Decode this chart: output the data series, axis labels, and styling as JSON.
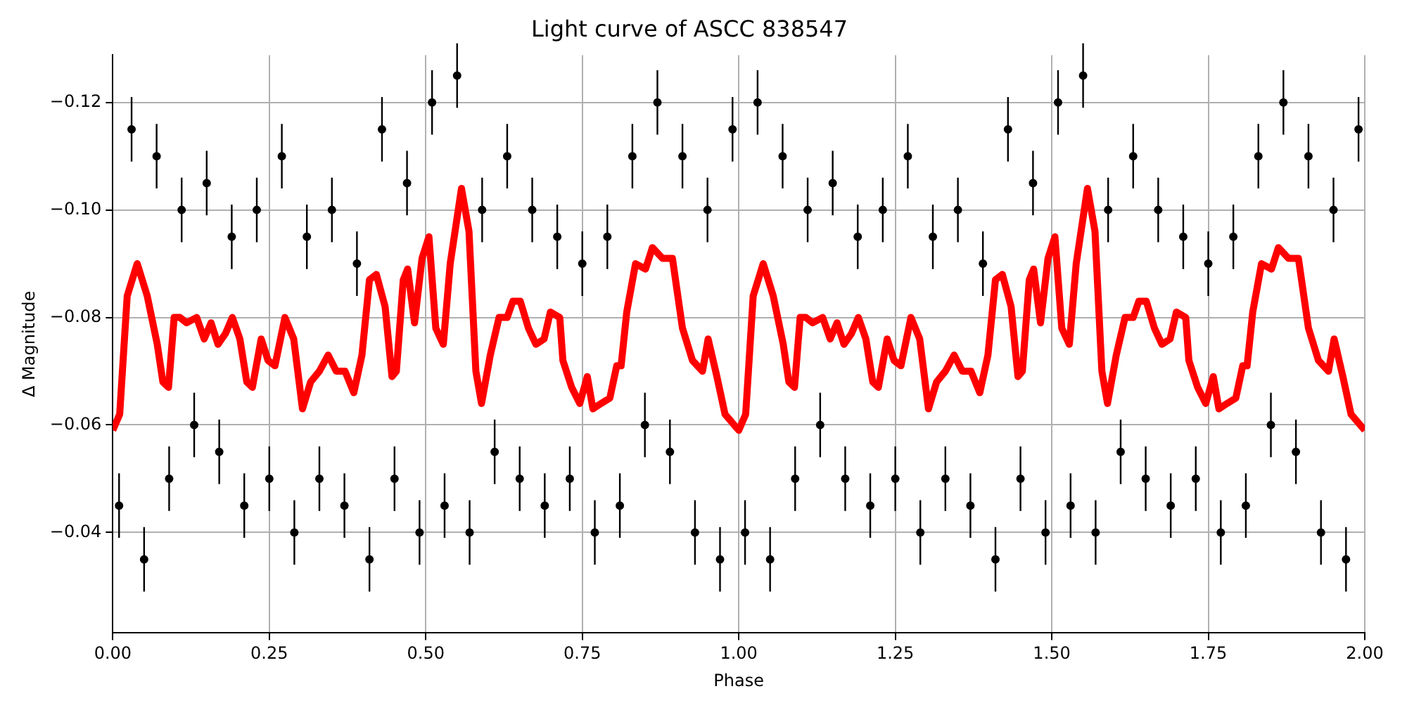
{
  "chart_data": {
    "type": "scatter",
    "title": "Light curve of ASCC 838547",
    "xlabel": "Phase",
    "ylabel": "Δ Magnitude",
    "xlim": [
      0,
      2
    ],
    "xticks": [
      {
        "value": 0,
        "label": "0.00"
      },
      {
        "value": 0.25,
        "label": "0.25"
      },
      {
        "value": 0.5,
        "label": "0.50"
      },
      {
        "value": 0.75,
        "label": "0.75"
      },
      {
        "value": 1,
        "label": "1.00"
      },
      {
        "value": 1.25,
        "label": "1.25"
      },
      {
        "value": 1.5,
        "label": "1.50"
      },
      {
        "value": 1.75,
        "label": "1.75"
      },
      {
        "value": 2,
        "label": "2.00"
      }
    ],
    "ylim": [
      -0.0213,
      -0.1288
    ],
    "yticks": [
      {
        "value": -0.12,
        "label": "−0.12"
      },
      {
        "value": -0.1,
        "label": "−0.10"
      },
      {
        "value": -0.08,
        "label": "−0.08"
      },
      {
        "value": -0.06,
        "label": "−0.06"
      },
      {
        "value": -0.04,
        "label": "−0.04"
      }
    ],
    "grid": true,
    "legend": false,
    "series": [
      {
        "type": "scatter",
        "color": "#000000",
        "marker": "circle",
        "x": [
          0.01,
          0.03,
          0.05,
          0.07,
          0.09,
          0.11,
          0.13,
          0.15,
          0.17,
          0.19,
          0.21,
          0.23,
          0.25,
          0.27,
          0.29,
          0.31,
          0.33,
          0.35,
          0.37,
          0.39,
          0.41,
          0.43,
          0.45,
          0.47,
          0.49,
          0.51,
          0.53,
          0.55,
          0.57,
          0.59,
          0.61,
          0.63,
          0.65,
          0.67,
          0.69,
          0.71,
          0.73,
          0.75,
          0.77,
          0.79,
          0.81,
          0.83,
          0.85,
          0.87,
          0.89,
          0.91,
          0.93,
          0.95,
          0.97,
          0.99,
          1.01,
          1.03,
          1.05,
          1.07,
          1.09,
          1.11,
          1.13,
          1.15,
          1.17,
          1.19,
          1.21,
          1.23,
          1.25,
          1.27,
          1.29,
          1.31,
          1.33,
          1.35,
          1.37,
          1.39,
          1.41,
          1.43,
          1.45,
          1.47,
          1.49,
          1.51,
          1.53,
          1.55,
          1.57,
          1.59,
          1.61,
          1.63,
          1.65,
          1.67,
          1.69,
          1.71,
          1.73,
          1.75,
          1.77,
          1.79,
          1.81,
          1.83,
          1.85,
          1.87,
          1.89,
          1.91,
          1.93,
          1.95,
          1.97,
          1.99
        ],
        "values": [
          -0.045,
          -0.115,
          -0.035,
          -0.11,
          -0.05,
          -0.1,
          -0.06,
          -0.105,
          -0.055,
          -0.095,
          -0.045,
          -0.1,
          -0.05,
          -0.11,
          -0.04,
          -0.095,
          -0.05,
          -0.1,
          -0.045,
          -0.09,
          -0.035,
          -0.115,
          -0.05,
          -0.105,
          -0.04,
          -0.12,
          -0.045,
          -0.125,
          -0.04,
          -0.1,
          -0.055,
          -0.11,
          -0.05,
          -0.1,
          -0.045,
          -0.095,
          -0.05,
          -0.09,
          -0.04,
          -0.095,
          -0.045,
          -0.11,
          -0.06,
          -0.12,
          -0.055,
          -0.11,
          -0.04,
          -0.1,
          -0.035,
          -0.115,
          -0.04,
          -0.12,
          -0.035,
          -0.11,
          -0.05,
          -0.1,
          -0.06,
          -0.105,
          -0.05,
          -0.095,
          -0.045,
          -0.1,
          -0.05,
          -0.11,
          -0.04,
          -0.095,
          -0.05,
          -0.1,
          -0.045,
          -0.09,
          -0.035,
          -0.115,
          -0.05,
          -0.105,
          -0.04,
          -0.12,
          -0.045,
          -0.125,
          -0.04,
          -0.1,
          -0.055,
          -0.11,
          -0.05,
          -0.1,
          -0.045,
          -0.095,
          -0.05,
          -0.09,
          -0.04,
          -0.095,
          -0.045,
          -0.11,
          -0.06,
          -0.12,
          -0.055,
          -0.11,
          -0.04,
          -0.1,
          -0.035,
          -0.115
        ],
        "errors": [
          0.006,
          0.006,
          0.006,
          0.006,
          0.006,
          0.006,
          0.006,
          0.006,
          0.006,
          0.006,
          0.006,
          0.006,
          0.006,
          0.006,
          0.006,
          0.006,
          0.006,
          0.006,
          0.006,
          0.006,
          0.006,
          0.006,
          0.006,
          0.006,
          0.006,
          0.006,
          0.006,
          0.006,
          0.006,
          0.006,
          0.006,
          0.006,
          0.006,
          0.006,
          0.006,
          0.006,
          0.006,
          0.006,
          0.006,
          0.006,
          0.006,
          0.006,
          0.006,
          0.006,
          0.006,
          0.006,
          0.006,
          0.006,
          0.006,
          0.006,
          0.006,
          0.006,
          0.006,
          0.006,
          0.006,
          0.006,
          0.006,
          0.006,
          0.006,
          0.006,
          0.006,
          0.006,
          0.006,
          0.006,
          0.006,
          0.006,
          0.006,
          0.006,
          0.006,
          0.006,
          0.006,
          0.006,
          0.006,
          0.006,
          0.006,
          0.006,
          0.006,
          0.006,
          0.006,
          0.006,
          0.006,
          0.006,
          0.006,
          0.006,
          0.006,
          0.006,
          0.006,
          0.006,
          0.006,
          0.006,
          0.006,
          0.006,
          0.006,
          0.006,
          0.006,
          0.006,
          0.006,
          0.006,
          0.006,
          0.006
        ]
      },
      {
        "type": "line",
        "color": "#ff0000",
        "marker": "none",
        "line_style": "solid",
        "x": [
          0,
          0.011,
          0.023,
          0.039,
          0.055,
          0.071,
          0.08,
          0.089,
          0.098,
          0.107,
          0.118,
          0.134,
          0.146,
          0.157,
          0.168,
          0.18,
          0.191,
          0.203,
          0.214,
          0.223,
          0.237,
          0.248,
          0.259,
          0.275,
          0.289,
          0.303,
          0.316,
          0.33,
          0.344,
          0.357,
          0.371,
          0.385,
          0.398,
          0.41,
          0.421,
          0.435,
          0.446,
          0.453,
          0.464,
          0.471,
          0.482,
          0.494,
          0.505,
          0.516,
          0.528,
          0.539,
          0.557,
          0.569,
          0.58,
          0.589,
          0.603,
          0.617,
          0.63,
          0.639,
          0.651,
          0.664,
          0.676,
          0.689,
          0.699,
          0.714,
          0.719,
          0.733,
          0.746,
          0.758,
          0.767,
          0.78,
          0.794,
          0.805,
          0.812,
          0.821,
          0.835,
          0.851,
          0.862,
          0.878,
          0.894,
          0.91,
          0.926,
          0.942,
          0.951,
          0.965,
          0.978,
          1,
          1.011,
          1.023,
          1.039,
          1.055,
          1.071,
          1.08,
          1.089,
          1.098,
          1.107,
          1.118,
          1.134,
          1.146,
          1.157,
          1.168,
          1.18,
          1.191,
          1.203,
          1.214,
          1.223,
          1.237,
          1.248,
          1.259,
          1.275,
          1.289,
          1.303,
          1.316,
          1.33,
          1.344,
          1.357,
          1.371,
          1.385,
          1.398,
          1.41,
          1.421,
          1.435,
          1.446,
          1.453,
          1.464,
          1.471,
          1.482,
          1.494,
          1.505,
          1.516,
          1.528,
          1.539,
          1.557,
          1.569,
          1.58,
          1.589,
          1.603,
          1.617,
          1.63,
          1.639,
          1.651,
          1.664,
          1.676,
          1.689,
          1.699,
          1.714,
          1.719,
          1.733,
          1.746,
          1.758,
          1.767,
          1.78,
          1.794,
          1.805,
          1.812,
          1.821,
          1.835,
          1.851,
          1.862,
          1.878,
          1.894,
          1.91,
          1.926,
          1.942,
          1.951,
          1.965,
          1.978,
          2
        ],
        "values": [
          -0.059,
          -0.062,
          -0.084,
          -0.09,
          -0.084,
          -0.075,
          -0.068,
          -0.067,
          -0.08,
          -0.08,
          -0.079,
          -0.08,
          -0.076,
          -0.079,
          -0.075,
          -0.077,
          -0.08,
          -0.076,
          -0.068,
          -0.067,
          -0.076,
          -0.072,
          -0.071,
          -0.08,
          -0.076,
          -0.063,
          -0.068,
          -0.07,
          -0.073,
          -0.07,
          -0.07,
          -0.066,
          -0.073,
          -0.087,
          -0.088,
          -0.082,
          -0.069,
          -0.07,
          -0.087,
          -0.089,
          -0.079,
          -0.091,
          -0.095,
          -0.078,
          -0.075,
          -0.09,
          -0.104,
          -0.096,
          -0.07,
          -0.064,
          -0.073,
          -0.08,
          -0.08,
          -0.083,
          -0.083,
          -0.078,
          -0.075,
          -0.076,
          -0.081,
          -0.08,
          -0.072,
          -0.067,
          -0.064,
          -0.069,
          -0.063,
          -0.064,
          -0.065,
          -0.071,
          -0.071,
          -0.081,
          -0.09,
          -0.089,
          -0.093,
          -0.091,
          -0.091,
          -0.078,
          -0.072,
          -0.07,
          -0.076,
          -0.069,
          -0.062,
          -0.059,
          -0.062,
          -0.084,
          -0.09,
          -0.084,
          -0.075,
          -0.068,
          -0.067,
          -0.08,
          -0.08,
          -0.079,
          -0.08,
          -0.076,
          -0.079,
          -0.075,
          -0.077,
          -0.08,
          -0.076,
          -0.068,
          -0.067,
          -0.076,
          -0.072,
          -0.071,
          -0.08,
          -0.076,
          -0.063,
          -0.068,
          -0.07,
          -0.073,
          -0.07,
          -0.07,
          -0.066,
          -0.073,
          -0.087,
          -0.088,
          -0.082,
          -0.069,
          -0.07,
          -0.087,
          -0.089,
          -0.079,
          -0.091,
          -0.095,
          -0.078,
          -0.075,
          -0.09,
          -0.104,
          -0.096,
          -0.07,
          -0.064,
          -0.073,
          -0.08,
          -0.08,
          -0.083,
          -0.083,
          -0.078,
          -0.075,
          -0.076,
          -0.081,
          -0.08,
          -0.072,
          -0.067,
          -0.064,
          -0.069,
          -0.063,
          -0.064,
          -0.065,
          -0.071,
          -0.071,
          -0.081,
          -0.09,
          -0.089,
          -0.093,
          -0.091,
          -0.091,
          -0.078,
          -0.072,
          -0.07,
          -0.076,
          -0.069,
          -0.062,
          -0.059
        ]
      }
    ]
  }
}
